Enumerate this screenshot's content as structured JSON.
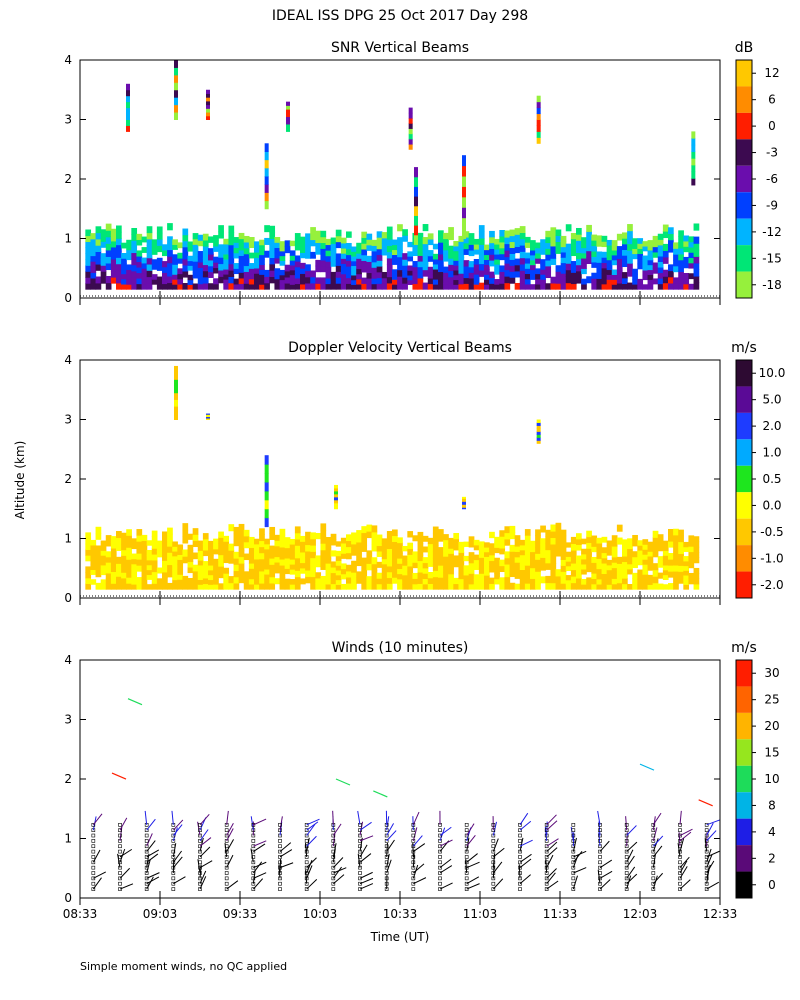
{
  "figure_title": "IDEAL ISS DPG  25 Oct 2017 Day 298",
  "ylabel": "Altitude (km)",
  "footnote": "Simple moment winds, no QC applied",
  "chart_data": [
    {
      "type": "heatmap",
      "title": "SNR Vertical Beams",
      "unit": "dB",
      "xlabel": "",
      "xticks": [
        "08:33",
        "09:03",
        "09:33",
        "10:03",
        "10:33",
        "11:03",
        "11:33",
        "12:03",
        "12:33"
      ],
      "xlim_minutes": [
        0,
        240
      ],
      "yticks": [
        "0",
        "1",
        "2",
        "3",
        "4"
      ],
      "ylim": [
        0,
        4
      ],
      "colorbar_labels": [
        "12",
        "6",
        "0",
        "-3",
        "-6",
        "-9",
        "-12",
        "-15",
        "-18"
      ],
      "colorbar_colors": [
        "#ffc800",
        "#ff8c00",
        "#ff1e00",
        "#3c0a50",
        "#6a0dad",
        "#0040ff",
        "#00b4ff",
        "#00e676",
        "#96f03c"
      ],
      "layer_top_km": 1.1,
      "features": [
        {
          "t": 18,
          "alt_lo": 2.8,
          "alt_hi": 3.6
        },
        {
          "t": 36,
          "alt_lo": 3.0,
          "alt_hi": 4.0
        },
        {
          "t": 48,
          "alt_lo": 3.0,
          "alt_hi": 3.5
        },
        {
          "t": 70,
          "alt_lo": 1.5,
          "alt_hi": 2.6
        },
        {
          "t": 78,
          "alt_lo": 2.8,
          "alt_hi": 3.3
        },
        {
          "t": 124,
          "alt_lo": 2.5,
          "alt_hi": 3.2
        },
        {
          "t": 126,
          "alt_lo": 0.9,
          "alt_hi": 2.2
        },
        {
          "t": 144,
          "alt_lo": 1.0,
          "alt_hi": 2.4
        },
        {
          "t": 172,
          "alt_lo": 2.6,
          "alt_hi": 3.4
        },
        {
          "t": 230,
          "alt_lo": 1.9,
          "alt_hi": 2.8
        }
      ]
    },
    {
      "type": "heatmap",
      "title": "Doppler Velocity Vertical Beams",
      "unit": "m/s",
      "xlabel": "",
      "xticks": [
        "08:33",
        "09:03",
        "09:33",
        "10:03",
        "10:33",
        "11:03",
        "11:33",
        "12:03",
        "12:33"
      ],
      "xlim_minutes": [
        0,
        240
      ],
      "yticks": [
        "0",
        "1",
        "2",
        "3",
        "4"
      ],
      "ylim": [
        0,
        4
      ],
      "colorbar_labels": [
        "10.0",
        "5.0",
        "2.0",
        "1.0",
        "0.5",
        "0.0",
        "-0.5",
        "-1.0",
        "-2.0"
      ],
      "colorbar_colors": [
        "#2d0a32",
        "#5a0a96",
        "#1e3cff",
        "#00aaff",
        "#1ee61e",
        "#ffff00",
        "#ffc800",
        "#ff8c00",
        "#ff1e00"
      ],
      "layer_top_km": 1.1,
      "features": [
        {
          "t": 36,
          "alt_lo": 3.0,
          "alt_hi": 3.9
        },
        {
          "t": 48,
          "alt_lo": 3.0,
          "alt_hi": 3.1
        },
        {
          "t": 70,
          "alt_lo": 1.2,
          "alt_hi": 2.4
        },
        {
          "t": 96,
          "alt_lo": 1.5,
          "alt_hi": 1.9
        },
        {
          "t": 144,
          "alt_lo": 1.5,
          "alt_hi": 1.7
        },
        {
          "t": 172,
          "alt_lo": 2.6,
          "alt_hi": 3.0
        }
      ]
    },
    {
      "type": "scatter",
      "title": "Winds (10 minutes)",
      "unit": "m/s",
      "xlabel": "Time (UT)",
      "xticks": [
        "08:33",
        "09:03",
        "09:33",
        "10:03",
        "10:33",
        "11:03",
        "11:33",
        "12:03",
        "12:33"
      ],
      "xlim_minutes": [
        0,
        240
      ],
      "yticks": [
        "0",
        "1",
        "2",
        "3",
        "4"
      ],
      "ylim": [
        0,
        4
      ],
      "colorbar_labels": [
        "30",
        "25",
        "20",
        "15",
        "10",
        "8",
        "4",
        "2",
        "0"
      ],
      "colorbar_colors": [
        "#ff1e00",
        "#ff6400",
        "#ffb400",
        "#96e61e",
        "#1edc5a",
        "#00b4e6",
        "#1e1ee6",
        "#5a0a78",
        "#000000"
      ],
      "profile_times_minutes": [
        5,
        15,
        25,
        35,
        45,
        55,
        65,
        75,
        85,
        95,
        105,
        115,
        125,
        135,
        145,
        155,
        165,
        175,
        185,
        195,
        205,
        215,
        225,
        235
      ],
      "upper_barbs": [
        {
          "t": 18,
          "alt": 3.35
        },
        {
          "t": 12,
          "alt": 2.1
        },
        {
          "t": 96,
          "alt": 2.0
        },
        {
          "t": 110,
          "alt": 1.8
        },
        {
          "t": 210,
          "alt": 2.25
        },
        {
          "t": 232,
          "alt": 1.65
        }
      ]
    }
  ]
}
